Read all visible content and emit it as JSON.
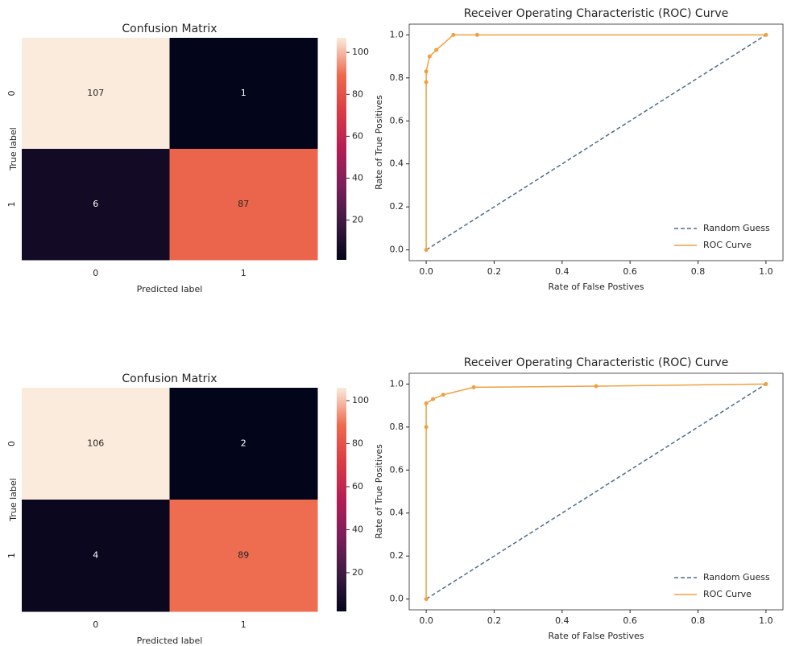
{
  "chart_data": [
    {
      "type": "heatmap",
      "title": "Confusion Matrix",
      "xlabel": "Predicted label",
      "ylabel": "True label",
      "x_categories": [
        "0",
        "1"
      ],
      "y_categories": [
        "0",
        "1"
      ],
      "values": [
        [
          107,
          1
        ],
        [
          6,
          87
        ]
      ],
      "clim": [
        1,
        107
      ],
      "colorbar_ticks": [
        20,
        40,
        60,
        80,
        100
      ],
      "colorscale": [
        "#03051a",
        "#3c1a42",
        "#7a1f5a",
        "#b41d55",
        "#da3b46",
        "#ee6a4d",
        "#faebdd"
      ]
    },
    {
      "type": "line",
      "title": "Receiver Operating Characteristic (ROC) Curve",
      "xlabel": "Rate of False Postives",
      "ylabel": "Rate of True Positives",
      "xlim": [
        -0.05,
        1.05
      ],
      "ylim": [
        -0.05,
        1.05
      ],
      "xticks": [
        {
          "value": 0,
          "label": "0.0"
        },
        0.2,
        0.4,
        0.6,
        0.8,
        {
          "value": 1,
          "label": "1.0"
        }
      ],
      "yticks": [
        {
          "value": 0,
          "label": "0.0"
        },
        0.2,
        0.4,
        0.6,
        0.8,
        {
          "value": 1,
          "label": "1.0"
        }
      ],
      "legend": "lower right",
      "series": [
        {
          "name": "Random Guess",
          "color": "#4f6d8a",
          "dashed": true,
          "x": [
            0,
            1
          ],
          "values": [
            0,
            1
          ]
        },
        {
          "name": "ROC Curve",
          "color": "#f0a040",
          "markers": true,
          "x": [
            0,
            0,
            0,
            0.01,
            0.03,
            0.08,
            0.15,
            1
          ],
          "values": [
            0,
            0.78,
            0.83,
            0.9,
            0.93,
            1.0,
            1.0,
            1.0
          ]
        }
      ]
    },
    {
      "type": "heatmap",
      "title": "Confusion Matrix",
      "xlabel": "Predicted label",
      "ylabel": "True label",
      "x_categories": [
        "0",
        "1"
      ],
      "y_categories": [
        "0",
        "1"
      ],
      "values": [
        [
          106,
          2
        ],
        [
          4,
          89
        ]
      ],
      "clim": [
        2,
        106
      ],
      "colorbar_ticks": [
        20,
        40,
        60,
        80,
        100
      ],
      "colorscale": [
        "#03051a",
        "#3c1a42",
        "#7a1f5a",
        "#b41d55",
        "#da3b46",
        "#ee6a4d",
        "#faebdd"
      ]
    },
    {
      "type": "line",
      "title": "Receiver Operating Characteristic (ROC) Curve",
      "xlabel": "Rate of False Postives",
      "ylabel": "Rate of True Positives",
      "xlim": [
        -0.05,
        1.05
      ],
      "ylim": [
        -0.05,
        1.05
      ],
      "xticks": [
        {
          "value": 0,
          "label": "0.0"
        },
        0.2,
        0.4,
        0.6,
        0.8,
        {
          "value": 1,
          "label": "1.0"
        }
      ],
      "yticks": [
        {
          "value": 0,
          "label": "0.0"
        },
        0.2,
        0.4,
        0.6,
        0.8,
        {
          "value": 1,
          "label": "1.0"
        }
      ],
      "legend": "lower right",
      "series": [
        {
          "name": "Random Guess",
          "color": "#4f6d8a",
          "dashed": true,
          "x": [
            0,
            1
          ],
          "values": [
            0,
            1
          ]
        },
        {
          "name": "ROC Curve",
          "color": "#f0a040",
          "markers": true,
          "x": [
            0,
            0,
            0,
            0.02,
            0.05,
            0.14,
            0.5,
            1
          ],
          "values": [
            0,
            0.8,
            0.91,
            0.93,
            0.95,
            0.985,
            0.99,
            1.0
          ]
        }
      ]
    }
  ]
}
